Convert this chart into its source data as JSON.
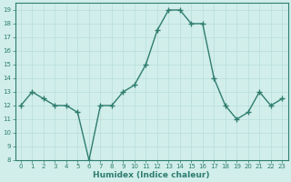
{
  "x": [
    0,
    1,
    2,
    3,
    4,
    5,
    6,
    7,
    8,
    9,
    10,
    11,
    12,
    13,
    14,
    15,
    16,
    17,
    18,
    19,
    20,
    21,
    22,
    23
  ],
  "y": [
    12,
    13,
    12.5,
    12,
    12,
    11.5,
    8,
    12,
    12,
    13,
    13.5,
    15,
    17.5,
    19,
    19,
    18,
    18,
    14,
    12,
    11,
    11.5,
    13,
    12,
    12.5
  ],
  "line_color": "#2e7d6e",
  "marker": "+",
  "marker_size": 4,
  "marker_lw": 1.0,
  "line_width": 1.0,
  "bg_color": "#d1eeeb",
  "grid_color": "#b8ddd9",
  "xlabel": "Humidex (Indice chaleur)",
  "ylim": [
    8,
    19.5
  ],
  "xlim": [
    -0.5,
    23.5
  ],
  "yticks": [
    8,
    9,
    10,
    11,
    12,
    13,
    14,
    15,
    16,
    17,
    18,
    19
  ],
  "xticks": [
    0,
    1,
    2,
    3,
    4,
    5,
    6,
    7,
    8,
    9,
    10,
    11,
    12,
    13,
    14,
    15,
    16,
    17,
    18,
    19,
    20,
    21,
    22,
    23
  ],
  "tick_fontsize": 5.0,
  "xlabel_fontsize": 6.5,
  "tick_color": "#2e7d6e",
  "label_color": "#2e7d6e"
}
